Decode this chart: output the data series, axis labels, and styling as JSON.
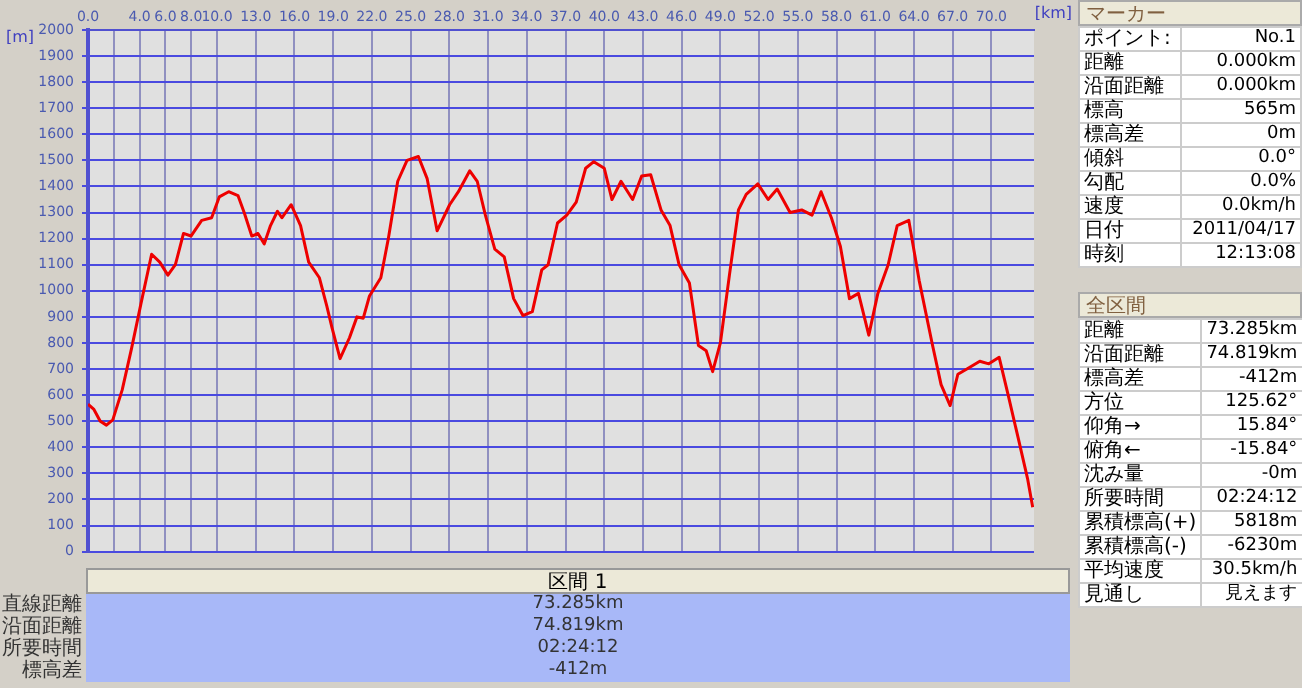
{
  "chart_data": [
    {
      "type": "line",
      "xlabel": "[km]",
      "ylabel": "[m]",
      "xlim": [
        0,
        73.3
      ],
      "ylim": [
        0,
        2000
      ],
      "xticks": [
        {
          "value": 0,
          "label": "0.0"
        },
        {
          "value": 2,
          "label": null
        },
        {
          "value": 4,
          "label": "4.0"
        },
        {
          "value": 6,
          "label": "6.0"
        },
        {
          "value": 8,
          "label": "8.0"
        },
        {
          "value": 10,
          "label": "10.0"
        },
        {
          "value": 13,
          "label": "13.0"
        },
        {
          "value": 16,
          "label": "16.0"
        },
        {
          "value": 19,
          "label": "19.0"
        },
        {
          "value": 22,
          "label": "22.0"
        },
        {
          "value": 25,
          "label": "25.0"
        },
        {
          "value": 28,
          "label": "28.0"
        },
        {
          "value": 31,
          "label": "31.0"
        },
        {
          "value": 34,
          "label": "34.0"
        },
        {
          "value": 37,
          "label": "37.0"
        },
        {
          "value": 40,
          "label": "40.0"
        },
        {
          "value": 43,
          "label": "43.0"
        },
        {
          "value": 46,
          "label": "46.0"
        },
        {
          "value": 49,
          "label": "49.0"
        },
        {
          "value": 52,
          "label": "52.0"
        },
        {
          "value": 55,
          "label": "55.0"
        },
        {
          "value": 58,
          "label": "58.0"
        },
        {
          "value": 61,
          "label": "61.0"
        },
        {
          "value": 64,
          "label": "64.0"
        },
        {
          "value": 67,
          "label": "67.0"
        },
        {
          "value": 70,
          "label": "70.0"
        }
      ],
      "yticks": [
        0,
        100,
        200,
        300,
        400,
        500,
        600,
        700,
        800,
        900,
        1000,
        1100,
        1200,
        1300,
        1400,
        1500,
        1600,
        1700,
        1800,
        1900,
        2000
      ],
      "grid": true,
      "legend": false,
      "marker": "none",
      "line_style": "solid",
      "series": [
        {
          "color": "#ee0000",
          "x": [
            0,
            0.46,
            0.95,
            1.43,
            1.92,
            2.65,
            3.38,
            4.1,
            4.93,
            5.56,
            6.19,
            6.77,
            7.4,
            7.98,
            8.81,
            9.58,
            10.17,
            10.9,
            11.62,
            12.1,
            12.69,
            13.17,
            13.66,
            14.14,
            14.68,
            15.02,
            15.74,
            16.47,
            17.1,
            17.93,
            18.51,
            18.9,
            19.53,
            20.26,
            20.84,
            21.33,
            21.81,
            22.69,
            23.27,
            24.0,
            24.72,
            25.6,
            26.28,
            27.05,
            28.02,
            28.7,
            29.58,
            30.16,
            30.79,
            31.52,
            32.25,
            32.98,
            33.7,
            34.43,
            35.16,
            35.65,
            36.38,
            37.1,
            37.83,
            38.56,
            39.19,
            40.0,
            40.6,
            41.3,
            42.2,
            42.9,
            43.6,
            44.4,
            45.1,
            45.8,
            46.6,
            47.3,
            47.9,
            48.4,
            49.0,
            49.7,
            50.4,
            51.0,
            51.9,
            52.7,
            53.4,
            54.4,
            55.3,
            56.1,
            56.8,
            57.6,
            58.3,
            59.0,
            59.7,
            60.5,
            61.2,
            62.0,
            62.7,
            63.6,
            64.4,
            65.4,
            66.1,
            66.8,
            67.4,
            68.1,
            69.1,
            69.8,
            70.6,
            71.3,
            72.1,
            72.8,
            73.2
          ],
          "values": [
            565,
            545,
            500,
            485,
            505,
            620,
            780,
            950,
            1140,
            1110,
            1060,
            1100,
            1220,
            1210,
            1270,
            1280,
            1360,
            1380,
            1365,
            1300,
            1210,
            1220,
            1180,
            1250,
            1305,
            1280,
            1330,
            1250,
            1110,
            1050,
            940,
            860,
            740,
            820,
            900,
            895,
            980,
            1050,
            1200,
            1420,
            1500,
            1515,
            1430,
            1230,
            1330,
            1380,
            1460,
            1420,
            1290,
            1160,
            1130,
            970,
            905,
            920,
            1080,
            1100,
            1260,
            1290,
            1340,
            1470,
            1495,
            1470,
            1350,
            1420,
            1350,
            1440,
            1445,
            1310,
            1250,
            1100,
            1030,
            790,
            770,
            690,
            800,
            1060,
            1310,
            1370,
            1410,
            1350,
            1390,
            1300,
            1310,
            1290,
            1380,
            1280,
            1170,
            970,
            990,
            830,
            990,
            1100,
            1250,
            1270,
            1040,
            800,
            640,
            560,
            680,
            700,
            730,
            720,
            745,
            600,
            430,
            280,
            170
          ]
        }
      ]
    },
    {
      "type": "other",
      "title": "マーカー",
      "annotations": [
        "ポイント:",
        "No.1",
        "距離",
        "0.000km",
        "沿面距離",
        "0.000km",
        "標高",
        "565m",
        "標高差",
        "0m",
        "傾斜",
        "0.0°",
        "勾配",
        "0.0%",
        "速度",
        "0.0km/h",
        "日付",
        "2011/04/17",
        "時刻",
        "12:13:08"
      ]
    },
    {
      "type": "other",
      "title": "全区間",
      "annotations": [
        "距離",
        "73.285km",
        "沿面距離",
        "74.819km",
        "標高差",
        "-412m",
        "方位",
        "125.62°",
        "仰角→",
        "15.84°",
        "俯角←",
        "-15.84°",
        "沈み量",
        "-0m",
        "所要時間",
        "02:24:12",
        "累積標高(+)",
        "5818m",
        "累積標高(-)",
        "-6230m",
        "平均速度",
        "30.5km/h",
        "見通し",
        "見えます"
      ]
    },
    {
      "type": "other",
      "title": "区間 1",
      "annotations": [
        "直線距離",
        "73.285km",
        "沿面距離",
        "74.819km",
        "所要時間",
        "02:24:12",
        "標高差",
        "-412m"
      ]
    }
  ]
}
